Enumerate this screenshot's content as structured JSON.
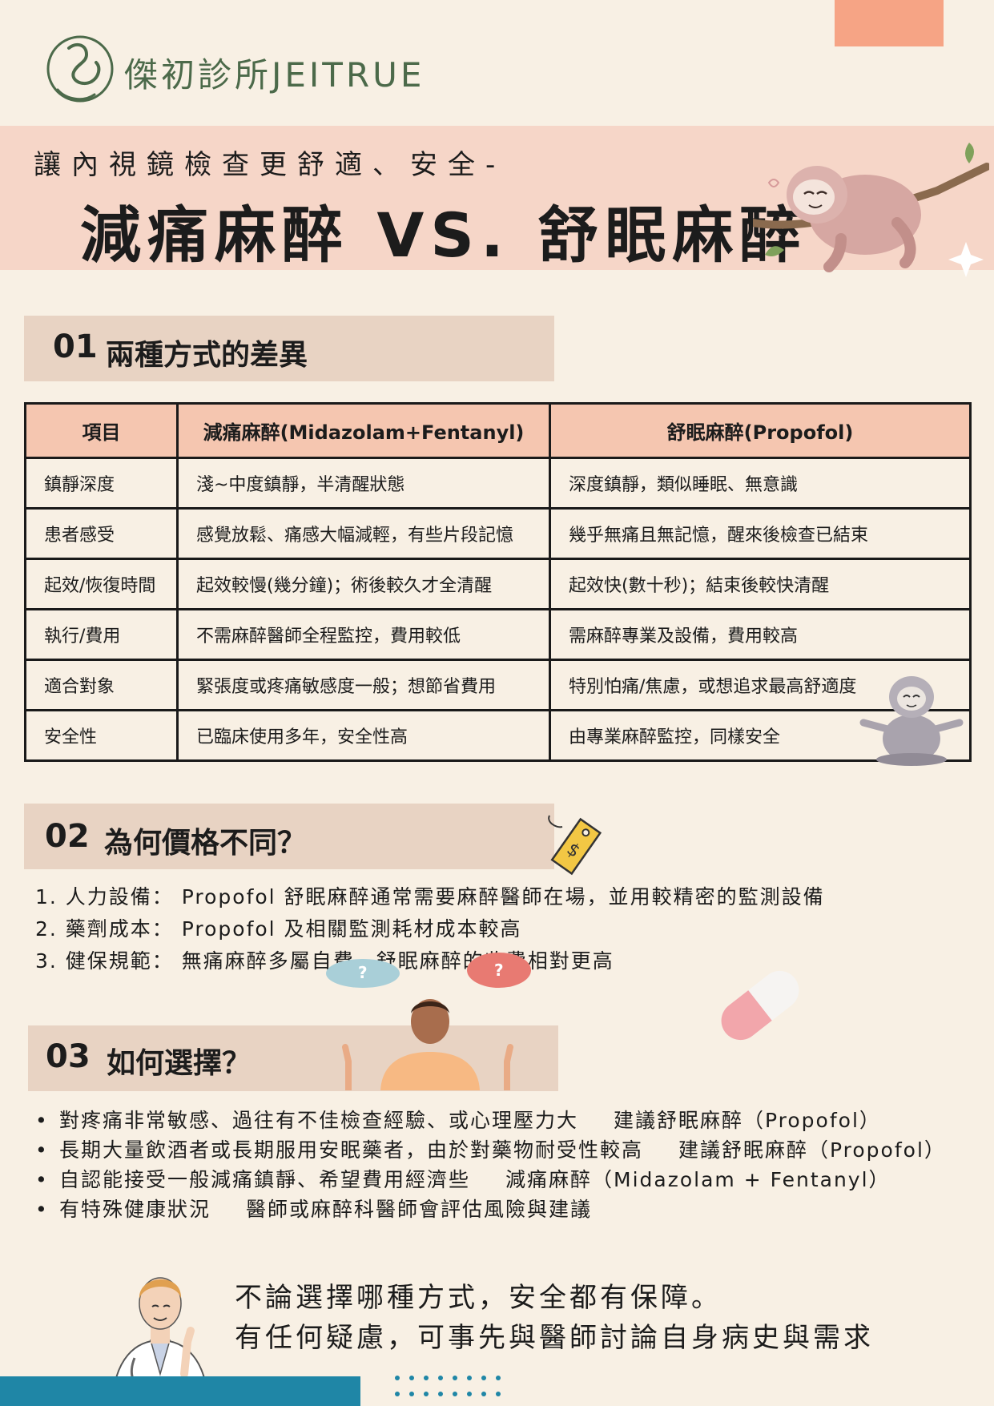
{
  "header": {
    "logo_text": "傑初診所JEITRUE",
    "subtitle": "讓內視鏡檢查更舒適、安全-",
    "title": "減痛麻醉 VS. 舒眠麻醉"
  },
  "section1": {
    "number": "01",
    "title": "兩種方式的差異",
    "table": {
      "headers": [
        "項目",
        "減痛麻醉(Midazolam+Fentanyl)",
        "舒眠麻醉(Propofol)"
      ],
      "rows": [
        [
          "鎮靜深度",
          "淺~中度鎮靜，半清醒狀態",
          "深度鎮靜，類似睡眠、無意識"
        ],
        [
          "患者感受",
          "感覺放鬆、痛感大幅減輕，有些片段記憶",
          "幾乎無痛且無記憶，醒來後檢查已結束"
        ],
        [
          "起效/恢復時間",
          "起效較慢(幾分鐘)；術後較久才全清醒",
          "起效快(數十秒)；結束後較快清醒"
        ],
        [
          "執行/費用",
          "不需麻醉醫師全程監控，費用較低",
          "需麻醉專業及設備，費用較高"
        ],
        [
          "適合對象",
          "緊張度或疼痛敏感度一般；想節省費用",
          "特別怕痛/焦慮，或想追求最高舒適度"
        ],
        [
          "安全性",
          "已臨床使用多年，安全性高",
          "由專業麻醉監控，同樣安全"
        ]
      ]
    }
  },
  "section2": {
    "number": "02",
    "title": "為何價格不同？",
    "items": [
      "1. 人力設備： Propofol 舒眠麻醉通常需要麻醉醫師在場，並用較精密的監測設備",
      "2. 藥劑成本： Propofol 及相關監測耗材成本較高",
      "3. 健保規範： 無痛麻醉多屬自費，舒眠麻醉的收費相對更高"
    ]
  },
  "section3": {
    "number": "03",
    "title": "如何選擇？",
    "bubble_marks": [
      "?",
      "?"
    ],
    "items": [
      {
        "condition": "對疼痛非常敏感、過往有不佳檢查經驗、或心理壓力大",
        "advice": "建議舒眠麻醉（Propofol）"
      },
      {
        "condition": "長期大量飲酒者或長期服用安眠藥者，由於對藥物耐受性較高",
        "advice": "建議舒眠麻醉（Propofol）"
      },
      {
        "condition": "自認能接受一般減痛鎮靜、希望費用經濟些",
        "advice": "減痛麻醉（Midazolam + Fentanyl）"
      },
      {
        "condition": "有特殊健康狀況",
        "advice": "醫師或麻醉科醫師會評估風險與建議"
      }
    ]
  },
  "closing": {
    "line1": "不論選擇哪種方式，安全都有保障。",
    "line2": "有任何疑慮，可事先與醫師討論自身病史與需求"
  },
  "tag_text": "$",
  "colors": {
    "background": "#f8f0e4",
    "title_band": "#f6d6c8",
    "section_bar": "#e8d3c3",
    "table_header": "#f5c6b0",
    "corner_accent": "#f6a485",
    "bottom_bar": "#1f86a6",
    "logo_green": "#4c6a4a"
  },
  "icons": [
    "logo-icon",
    "sloth-illustration",
    "meditating-sloth-illustration",
    "price-tag-icon",
    "question-bubbles-illustration",
    "pill-icon",
    "doctor-illustration",
    "dots-decoration"
  ]
}
